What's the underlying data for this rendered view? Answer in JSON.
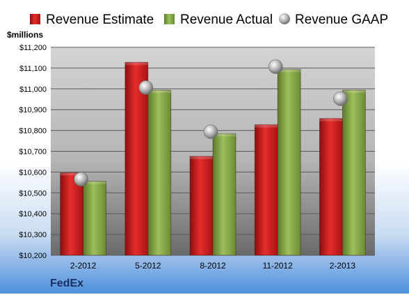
{
  "chart_data": {
    "type": "bar",
    "company": "FedEx",
    "ylabel": "$millions",
    "categories": [
      "2-2012",
      "5-2012",
      "8-2012",
      "11-2012",
      "2-2013"
    ],
    "series": [
      {
        "name": "Revenue Estimate",
        "kind": "bar",
        "color": "#cc1f1f",
        "values": [
          10597,
          11128,
          10676,
          10828,
          10858
        ]
      },
      {
        "name": "Revenue Actual",
        "kind": "bar",
        "color": "#8aa84a",
        "values": [
          10556,
          10994,
          10785,
          11094,
          10994
        ]
      },
      {
        "name": "Revenue GAAP",
        "kind": "marker",
        "color": "#b8b8b8",
        "values": [
          10566,
          11006,
          10794,
          11107,
          10953
        ]
      }
    ],
    "ylim": [
      10200,
      11200
    ],
    "yticks": [
      10200,
      10300,
      10400,
      10500,
      10600,
      10700,
      10800,
      10900,
      11000,
      11100,
      11200
    ],
    "ytick_labels": [
      "$10,200",
      "$10,300",
      "$10,400",
      "$10,500",
      "$10,600",
      "$10,700",
      "$10,800",
      "$10,900",
      "$11,000",
      "$11,100",
      "$11,200"
    ],
    "grid": true,
    "legend_position": "top"
  }
}
